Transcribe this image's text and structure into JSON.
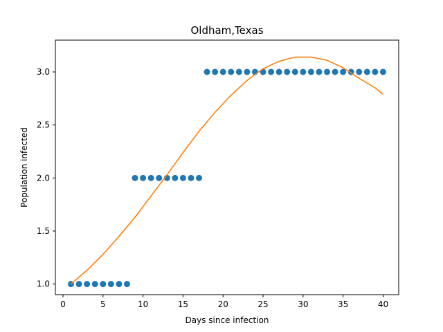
{
  "chart_data": {
    "type": "scatter",
    "title": "Oldham,Texas",
    "xlabel": "Days since infection",
    "ylabel": "Population infected",
    "xlim": [
      -0.95,
      41.95
    ],
    "ylim": [
      0.9,
      3.3
    ],
    "xticks": [
      0,
      5,
      10,
      15,
      20,
      25,
      30,
      35,
      40
    ],
    "xtick_labels": [
      "0",
      "5",
      "10",
      "15",
      "20",
      "25",
      "30",
      "35",
      "40"
    ],
    "yticks": [
      1.0,
      1.5,
      2.0,
      2.5,
      3.0
    ],
    "ytick_labels": [
      "1.0",
      "1.5",
      "2.0",
      "2.5",
      "3.0"
    ],
    "grid": false,
    "series": [
      {
        "type": "scatter",
        "color": "#1f77b4",
        "x": [
          1,
          2,
          3,
          4,
          5,
          6,
          7,
          8,
          9,
          10,
          11,
          12,
          13,
          14,
          15,
          16,
          17,
          18,
          19,
          20,
          21,
          22,
          23,
          24,
          25,
          26,
          27,
          28,
          29,
          30,
          31,
          32,
          33,
          34,
          35,
          36,
          37,
          38,
          39,
          40
        ],
        "y": [
          1,
          1,
          1,
          1,
          1,
          1,
          1,
          1,
          2,
          2,
          2,
          2,
          2,
          2,
          2,
          2,
          2,
          3,
          3,
          3,
          3,
          3,
          3,
          3,
          3,
          3,
          3,
          3,
          3,
          3,
          3,
          3,
          3,
          3,
          3,
          3,
          3,
          3,
          3,
          3
        ]
      },
      {
        "type": "line",
        "color": "#ff7f0e",
        "x": [
          1,
          3,
          5,
          7,
          9,
          11,
          13,
          15,
          17,
          19,
          21,
          23,
          25,
          27,
          29,
          31,
          33,
          35,
          37,
          39,
          40
        ],
        "y": [
          1.0,
          1.13,
          1.28,
          1.45,
          1.63,
          1.83,
          2.03,
          2.24,
          2.44,
          2.62,
          2.78,
          2.92,
          3.03,
          3.1,
          3.14,
          3.14,
          3.11,
          3.04,
          2.94,
          2.85,
          2.79
        ]
      }
    ]
  }
}
